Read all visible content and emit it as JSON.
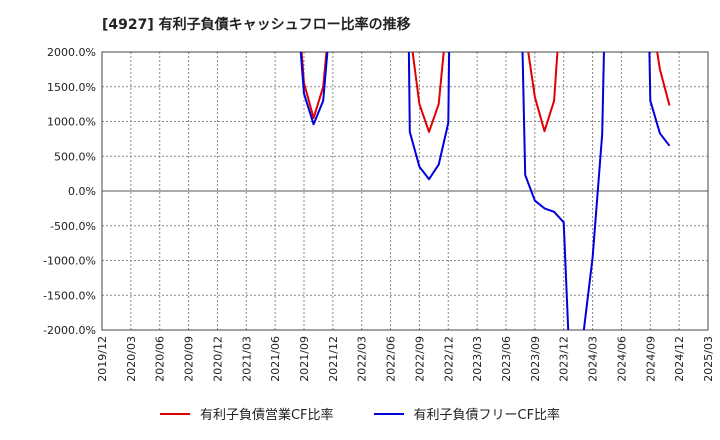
{
  "chart_data": {
    "type": "line",
    "title": "[4927]  有利子負債キャッシュフロー比率の推移",
    "xlabel": "",
    "ylabel": "",
    "ylim": [
      -2000,
      2000
    ],
    "y_ticks": [
      2000,
      1500,
      1000,
      500,
      0,
      -500,
      -1000,
      -1500,
      -2000
    ],
    "y_tick_labels": [
      "2000.0%",
      "1500.0%",
      "1000.0%",
      "500.0%",
      "0.0%",
      "-500.0%",
      "-1000.0%",
      "-1500.0%",
      "-2000.0%"
    ],
    "x_tick_labels": [
      "2019/12",
      "2020/03",
      "2020/06",
      "2020/09",
      "2020/12",
      "2021/03",
      "2021/06",
      "2021/09",
      "2021/12",
      "2022/03",
      "2022/06",
      "2022/09",
      "2022/12",
      "2023/03",
      "2023/06",
      "2023/09",
      "2023/12",
      "2024/03",
      "2024/06",
      "2024/09",
      "2024/12",
      "2025/03"
    ],
    "x_range_months": [
      0,
      63
    ],
    "grid": true,
    "legend_position": "bottom",
    "series": [
      {
        "name": "有利子負債営業CF比率",
        "color": "#e00000",
        "segments": [
          [
            [
              20.7,
              2100
            ],
            [
              21,
              1550
            ],
            [
              22,
              1050
            ],
            [
              23,
              1500
            ],
            [
              23.4,
              2100
            ]
          ],
          [
            [
              32.2,
              2100
            ],
            [
              33,
              1250
            ],
            [
              34,
              850
            ],
            [
              35,
              1250
            ],
            [
              35.6,
              2100
            ]
          ],
          [
            [
              44.2,
              2100
            ],
            [
              45,
              1350
            ],
            [
              46,
              860
            ],
            [
              47,
              1300
            ],
            [
              47.4,
              2100
            ]
          ],
          [
            [
              57.6,
              2100
            ],
            [
              58,
              1750
            ],
            [
              59,
              1230
            ]
          ]
        ]
      },
      {
        "name": "有利子負債フリーCF比率",
        "color": "#0000dd",
        "segments": [
          [
            [
              20.6,
              2100
            ],
            [
              21,
              1400
            ],
            [
              22,
              960
            ],
            [
              23,
              1300
            ],
            [
              23.5,
              2100
            ]
          ],
          [
            [
              31.9,
              2100
            ],
            [
              32,
              850
            ],
            [
              33,
              350
            ],
            [
              34,
              170
            ],
            [
              35,
              380
            ],
            [
              36,
              980
            ],
            [
              36.1,
              2100
            ]
          ],
          [
            [
              43.7,
              2100
            ],
            [
              44,
              230
            ],
            [
              45,
              -140
            ],
            [
              46,
              -250
            ],
            [
              47,
              -300
            ],
            [
              48,
              -450
            ],
            [
              48.5,
              -2100
            ]
          ],
          [
            [
              50,
              -2100
            ],
            [
              51,
              -960
            ],
            [
              52,
              820
            ],
            [
              52.2,
              2100
            ]
          ],
          [
            [
              56.9,
              2100
            ],
            [
              57,
              1300
            ],
            [
              58,
              830
            ],
            [
              59,
              650
            ]
          ]
        ]
      }
    ]
  }
}
